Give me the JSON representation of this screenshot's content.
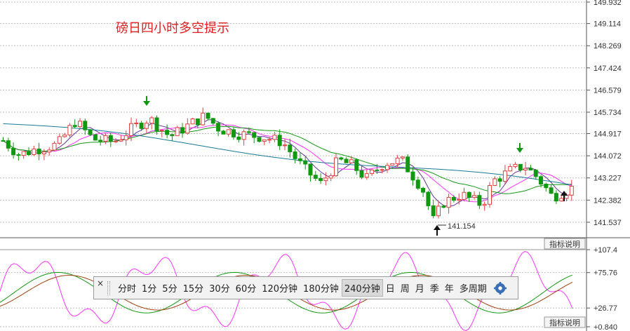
{
  "title": "磅日四小时多空提示",
  "colors": {
    "up": "#e04040",
    "down": "#109910",
    "ma_pink": "#ff33ff",
    "ma_green": "#119911",
    "ma_purple": "#663399",
    "ma_teal": "#1a7a9a"
  },
  "chart_data": {
    "type": "candlestick",
    "main_axis": {
      "ticks": [
        "149.932",
        "149.114",
        "148.269",
        "147.424",
        "146.579",
        "145.734",
        "144.917",
        "144.072",
        "143.227",
        "142.382",
        "141.537"
      ],
      "ylim": [
        141.0,
        149.932
      ]
    },
    "low_marker": "141.154",
    "sub_axis": {
      "ticks": [
        "+107.4",
        "+75.76",
        "+26.77",
        "+0.840"
      ],
      "ylim": [
        0.84,
        107.4
      ]
    },
    "indicator_button": "指标说明"
  },
  "toolbar": {
    "close_label": "×",
    "items": [
      "分时",
      "1分",
      "5分",
      "15分",
      "30分",
      "60分",
      "120分钟",
      "180分钟",
      "240分钟",
      "日",
      "周",
      "月",
      "季",
      "年",
      "多周期"
    ],
    "active": "240分钟"
  }
}
